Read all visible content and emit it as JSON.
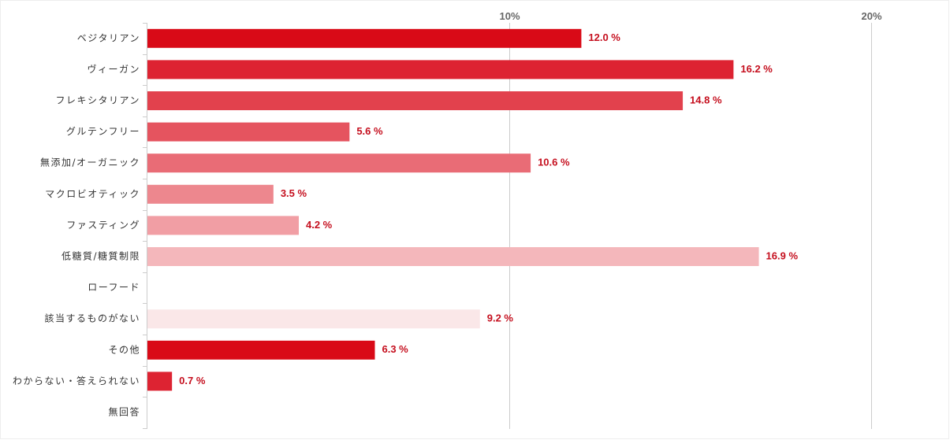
{
  "chart_data": {
    "type": "bar",
    "orientation": "horizontal",
    "categories": [
      "ベジタリアン",
      "ヴィーガン",
      "フレキシタリアン",
      "グルテンフリー",
      "無添加/オーガニック",
      "マクロビオティック",
      "ファスティング",
      "低糖質/糖質制限",
      "ローフード",
      "該当するものがない",
      "その他",
      "わからない・答えられない",
      "無回答"
    ],
    "values": [
      12.0,
      16.2,
      14.8,
      5.6,
      10.6,
      3.5,
      4.2,
      16.9,
      null,
      9.2,
      6.3,
      0.7,
      null
    ],
    "value_labels": [
      "12.0 %",
      "16.2 %",
      "14.8 %",
      "5.6 %",
      "10.6 %",
      "3.5 %",
      "4.2 %",
      "16.9 %",
      "",
      "9.2 %",
      "6.3 %",
      "0.7 %",
      ""
    ],
    "bar_colors": [
      "#d90a17",
      "#dd2332",
      "#e2414d",
      "#e5545f",
      "#e96c76",
      "#ed878e",
      "#f19ea4",
      "#f4b7bb",
      "#f8cfd1",
      "#fae7e8",
      "#d90a17",
      "#dd2332",
      "#e2414d"
    ],
    "label_color": "#c50f1e",
    "xticks": [
      10,
      20
    ],
    "xtick_labels": [
      "10%",
      "20%"
    ],
    "xlim": [
      0,
      20
    ],
    "grid": true,
    "title": "",
    "xlabel": "",
    "ylabel": ""
  }
}
